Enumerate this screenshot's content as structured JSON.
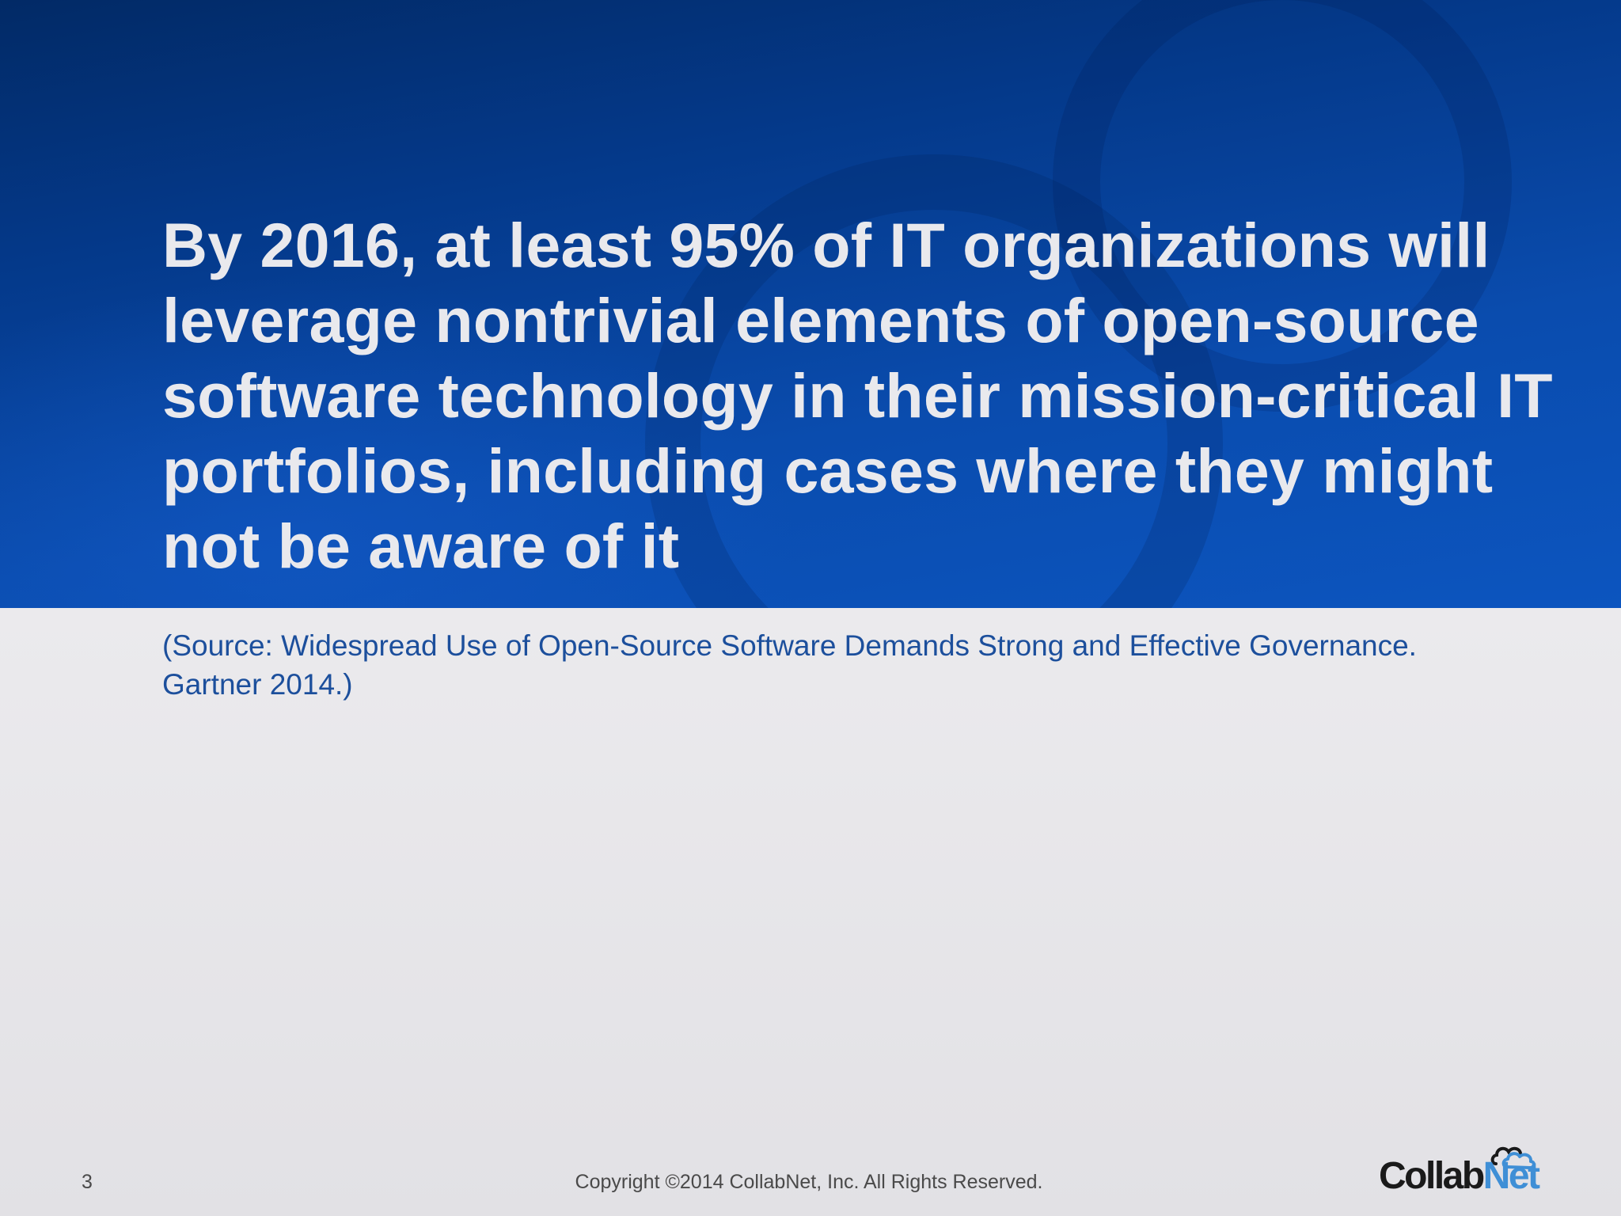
{
  "slide": {
    "headline": "By 2016, at least 95% of IT organizations will leverage nontrivial elements of open-source software technology in their mission-critical IT portfolios, including cases where they might not be aware of it",
    "source": "(Source: Widespread Use of Open-Source Software Demands Strong and Effective Governance.  Gartner 2014.)"
  },
  "footer": {
    "page_number": "3",
    "copyright": "Copyright ©2014 CollabNet, Inc.  All Rights Reserved.",
    "logo": {
      "part1": "Collab",
      "part2": "Net",
      "icon": "cloud-icon"
    }
  },
  "colors": {
    "header_blue": "#0a4cae",
    "headline_text": "#e9e9ed",
    "source_text": "#1c4f9c",
    "logo_net": "#3f8fd6"
  }
}
